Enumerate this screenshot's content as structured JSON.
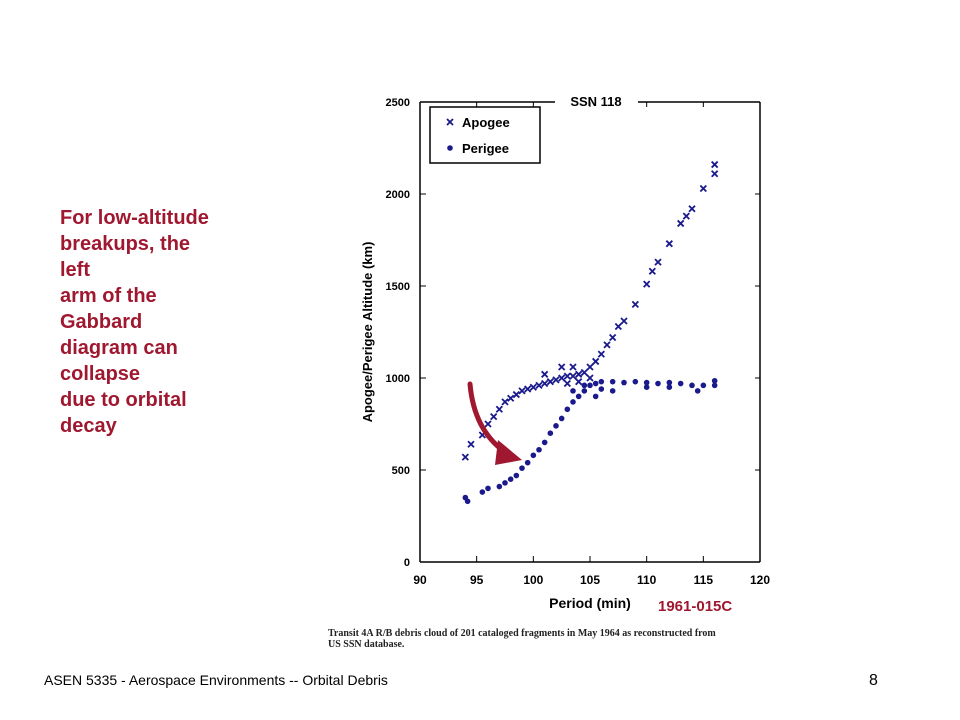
{
  "callout_lines": [
    "For low-altitude",
    "breakups, the",
    "left",
    "arm of the",
    "Gabbard",
    "diagram can",
    "collapse",
    "due to orbital",
    "decay"
  ],
  "fragment_id": "1961-015C",
  "caption_lines": [
    "Transit 4A R/B debris cloud of 201 cataloged fragments in May 1964 as reconstructed from",
    "US SSN database."
  ],
  "footer": "ASEN 5335 - Aerospace Environments -- Orbital Debris",
  "page_number": "8",
  "colors": {
    "accent": "#a01830",
    "marker": "#1a1a8c"
  },
  "chart_data": {
    "type": "scatter",
    "title": "SSN 118",
    "xlabel": "Period (min)",
    "ylabel": "Apogee/Perigee Altitude (km)",
    "xlim": [
      90,
      120
    ],
    "ylim": [
      0,
      2500
    ],
    "xticks": [
      90,
      95,
      100,
      105,
      110,
      115,
      120
    ],
    "yticks": [
      0,
      500,
      1000,
      1500,
      2000,
      2500
    ],
    "legend_position": "top-left",
    "series": [
      {
        "name": "Apogee",
        "marker": "x",
        "points": [
          [
            94,
            570
          ],
          [
            94.5,
            640
          ],
          [
            95.5,
            690
          ],
          [
            96,
            750
          ],
          [
            96.5,
            790
          ],
          [
            97,
            830
          ],
          [
            97.5,
            870
          ],
          [
            98,
            890
          ],
          [
            98.5,
            910
          ],
          [
            99,
            930
          ],
          [
            99.5,
            940
          ],
          [
            100,
            950
          ],
          [
            100.5,
            960
          ],
          [
            101,
            970
          ],
          [
            101.5,
            980
          ],
          [
            102,
            990
          ],
          [
            102.5,
            1000
          ],
          [
            103,
            1010
          ],
          [
            103.5,
            1010
          ],
          [
            104,
            1020
          ],
          [
            104.5,
            1030
          ],
          [
            105,
            1060
          ],
          [
            105.5,
            1090
          ],
          [
            106,
            1130
          ],
          [
            106.5,
            1180
          ],
          [
            107,
            1220
          ],
          [
            107.5,
            1280
          ],
          [
            108,
            1310
          ],
          [
            109,
            1400
          ],
          [
            110,
            1510
          ],
          [
            110.5,
            1580
          ],
          [
            111,
            1630
          ],
          [
            112,
            1730
          ],
          [
            113,
            1840
          ],
          [
            113.5,
            1880
          ],
          [
            114,
            1920
          ],
          [
            115,
            2030
          ],
          [
            116,
            2110
          ],
          [
            116,
            2160
          ],
          [
            101,
            1020
          ],
          [
            102.5,
            1060
          ],
          [
            103.5,
            1060
          ],
          [
            104,
            980
          ],
          [
            103,
            970
          ],
          [
            105,
            1000
          ]
        ]
      },
      {
        "name": "Perigee",
        "marker": "dot",
        "points": [
          [
            94,
            350
          ],
          [
            94.2,
            330
          ],
          [
            95.5,
            380
          ],
          [
            96,
            400
          ],
          [
            97,
            410
          ],
          [
            97.5,
            430
          ],
          [
            98,
            450
          ],
          [
            98.5,
            470
          ],
          [
            99,
            510
          ],
          [
            99.5,
            540
          ],
          [
            100,
            580
          ],
          [
            100.5,
            610
          ],
          [
            101,
            650
          ],
          [
            101.5,
            700
          ],
          [
            102,
            740
          ],
          [
            102.5,
            780
          ],
          [
            103,
            830
          ],
          [
            103.5,
            870
          ],
          [
            104,
            900
          ],
          [
            104.5,
            930
          ],
          [
            105,
            960
          ],
          [
            105.5,
            970
          ],
          [
            106,
            980
          ],
          [
            107,
            980
          ],
          [
            108,
            975
          ],
          [
            109,
            980
          ],
          [
            110,
            975
          ],
          [
            111,
            970
          ],
          [
            112,
            975
          ],
          [
            113,
            970
          ],
          [
            114,
            960
          ],
          [
            115,
            960
          ],
          [
            116,
            960
          ],
          [
            116,
            985
          ],
          [
            114.5,
            930
          ],
          [
            110,
            950
          ],
          [
            112,
            950
          ],
          [
            104.5,
            960
          ],
          [
            103.5,
            930
          ],
          [
            105.5,
            900
          ],
          [
            106,
            940
          ],
          [
            107,
            930
          ]
        ]
      }
    ]
  }
}
